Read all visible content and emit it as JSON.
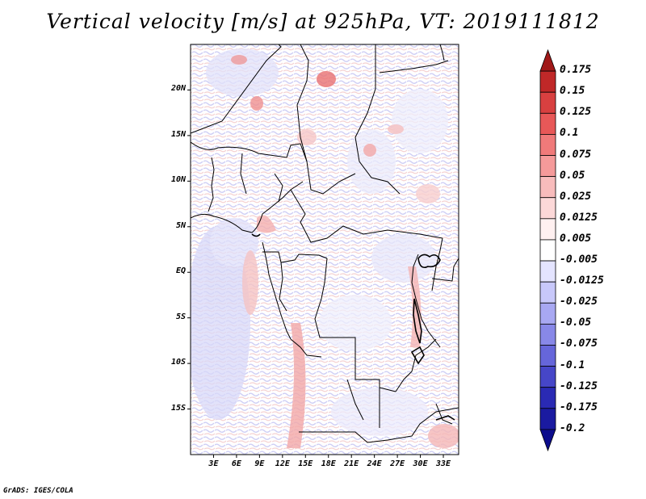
{
  "title": "Vertical velocity [m/s] at 925hPa, VT: 2019111812",
  "credit": "GrADS: IGES/COLA",
  "map": {
    "lat_labels": [
      "20N",
      "15N",
      "10N",
      "5N",
      "EQ",
      "5S",
      "10S",
      "15S"
    ],
    "lat_values": [
      20,
      15,
      10,
      5,
      0,
      -5,
      -10,
      -15
    ],
    "lon_labels": [
      "3E",
      "6E",
      "9E",
      "12E",
      "15E",
      "18E",
      "21E",
      "24E",
      "27E",
      "30E",
      "33E"
    ],
    "lon_values": [
      3,
      6,
      9,
      12,
      15,
      18,
      21,
      24,
      27,
      30,
      33
    ],
    "lon_range": [
      0,
      35
    ],
    "lat_range": [
      -20,
      25
    ]
  },
  "colorbar": {
    "levels": [
      "0.175",
      "0.15",
      "0.125",
      "0.1",
      "0.075",
      "0.05",
      "0.025",
      "0.0125",
      "0.005",
      "-0.005",
      "-0.0125",
      "-0.025",
      "-0.05",
      "-0.075",
      "-0.1",
      "-0.125",
      "-0.175",
      "-0.2"
    ],
    "colors": [
      "#a01818",
      "#c02828",
      "#d84040",
      "#e85858",
      "#f07a7a",
      "#f59a9a",
      "#f8bcbc",
      "#fcd8d8",
      "#fff0f0",
      "#ffffff",
      "#e4e4ff",
      "#c8c8fa",
      "#a8a8f2",
      "#8888e8",
      "#6666da",
      "#4646c8",
      "#2a2ab4",
      "#1a1aa0",
      "#0c0c8c"
    ]
  }
}
